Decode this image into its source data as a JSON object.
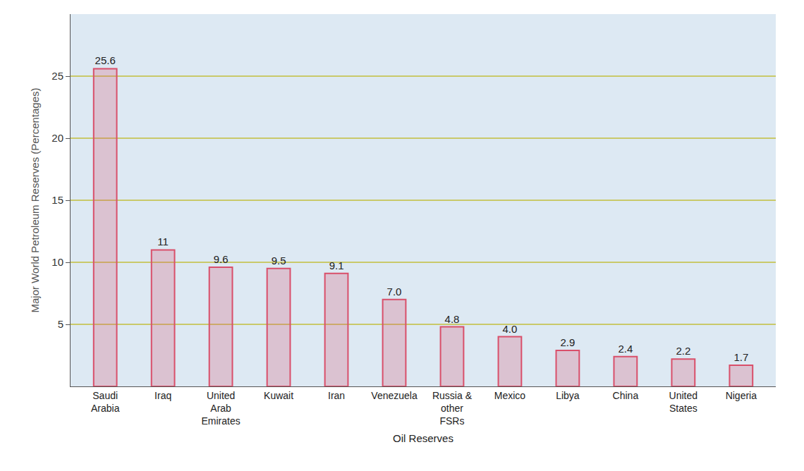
{
  "chart_data": {
    "type": "bar",
    "x_label": "Oil Reserves",
    "y_label": "Major World Petroleum Reserves (Percentages)",
    "categories": [
      "Saudi Arabia",
      "Iraq",
      "United Arab Emirates",
      "Kuwait",
      "Iran",
      "Venezuela",
      "Russia & other FSRs",
      "Mexico",
      "Libya",
      "China",
      "United States",
      "Nigeria"
    ],
    "values": [
      25.6,
      11,
      9.6,
      9.5,
      9.1,
      7.0,
      4.8,
      4.0,
      2.9,
      2.4,
      2.2,
      1.7
    ],
    "value_labels": [
      "25.6",
      "11",
      "9.6",
      "9.5",
      "9.1",
      "7.0",
      "4.8",
      "4.0",
      "2.9",
      "2.4",
      "2.2",
      "1.7"
    ],
    "color": "#d94f6a",
    "ylim": [
      0,
      30
    ],
    "yticks": [
      5,
      10,
      15,
      20,
      25
    ],
    "grid": true,
    "data_labels": true
  }
}
